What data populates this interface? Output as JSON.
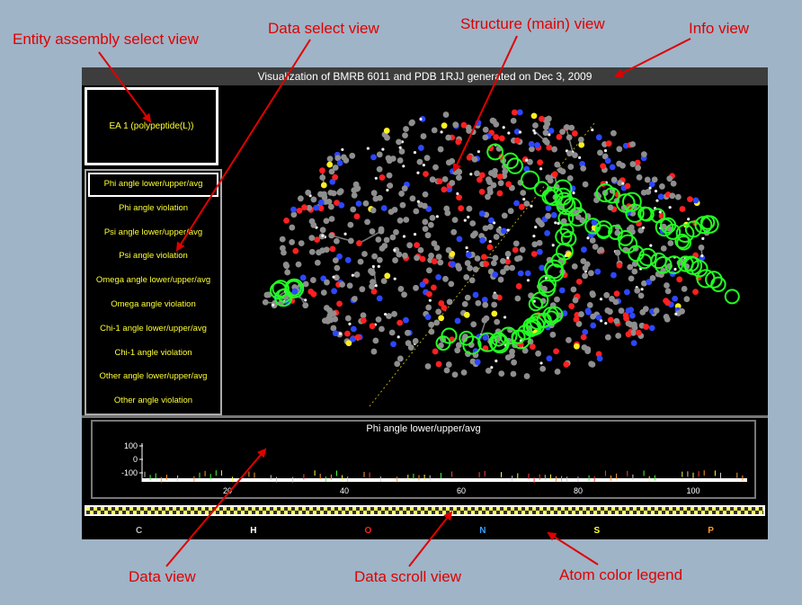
{
  "annotations": {
    "entity_assembly_select_view": "Entity assembly select view",
    "data_select_view": "Data select view",
    "structure_main_view": "Structure (main) view",
    "info_view": "Info view",
    "data_view": "Data view",
    "data_scroll_view": "Data scroll view",
    "atom_color_legend": "Atom color legend"
  },
  "info": {
    "title": "Visualization of BMRB 6011 and PDB 1RJJ generated on Dec 3, 2009"
  },
  "entity_assembly": {
    "selected": "EA 1 (polypeptide(L))"
  },
  "data_select": {
    "items": [
      {
        "label": "Phi angle lower/upper/avg"
      },
      {
        "label": "Phi angle violation"
      },
      {
        "label": "Psi angle lower/upper/avg"
      },
      {
        "label": "Psi angle violation"
      },
      {
        "label": "Omega angle lower/upper/avg"
      },
      {
        "label": "Omega angle violation"
      },
      {
        "label": "Chi-1 angle lower/upper/avg"
      },
      {
        "label": "Chi-1 angle violation"
      },
      {
        "label": "Other angle lower/upper/avg"
      },
      {
        "label": "Other angle violation"
      }
    ],
    "selected_index": 0
  },
  "data_view": {
    "title": "Phi angle lower/upper/avg",
    "y_ticks": [
      "100",
      "0",
      "-100"
    ],
    "x_ticks": [
      "20",
      "40",
      "60",
      "80",
      "100"
    ]
  },
  "legend": {
    "atoms": [
      {
        "symbol": "C",
        "color": "#bbbbbb"
      },
      {
        "symbol": "H",
        "color": "#ffffff"
      },
      {
        "symbol": "O",
        "color": "#ff2020"
      },
      {
        "symbol": "N",
        "color": "#3aa0ff"
      },
      {
        "symbol": "S",
        "color": "#ffff33"
      },
      {
        "symbol": "P",
        "color": "#ff9a20"
      }
    ]
  },
  "colors": {
    "callout": "#e00000",
    "highlight_ring": "#22ff22",
    "panel_text": "#ffff33"
  }
}
